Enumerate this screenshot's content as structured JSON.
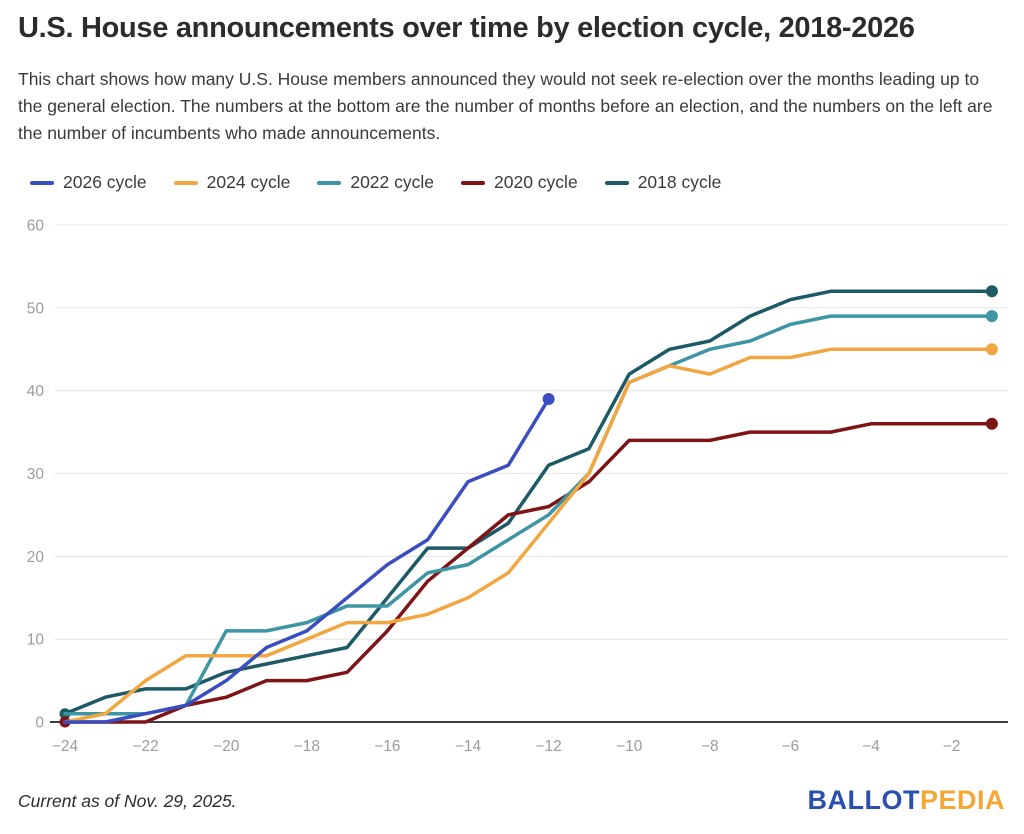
{
  "header": {
    "title": "U.S. House announcements over time by election cycle, 2018-2026",
    "subtitle": "This chart shows how many U.S. House members announced they would not seek re-election over the months leading up to the general election. The numbers at the bottom are the number of months before an election, and the numbers on the left are the number of incumbents who made announcements."
  },
  "legend": {
    "items": [
      {
        "label": "2026 cycle",
        "color": "#3b4ec0"
      },
      {
        "label": "2024 cycle",
        "color": "#f2a640"
      },
      {
        "label": "2022 cycle",
        "color": "#3e95a3"
      },
      {
        "label": "2020 cycle",
        "color": "#7e1416"
      },
      {
        "label": "2018 cycle",
        "color": "#1d5a66"
      }
    ]
  },
  "chart_data": {
    "type": "line",
    "x": [
      -24,
      -23,
      -22,
      -21,
      -20,
      -19,
      -18,
      -17,
      -16,
      -15,
      -14,
      -13,
      -12,
      -11,
      -10,
      -9,
      -8,
      -7,
      -6,
      -5,
      -4,
      -3,
      -2,
      -1
    ],
    "xticks": [
      -24,
      -22,
      -20,
      -18,
      -16,
      -14,
      -12,
      -10,
      -8,
      -6,
      -4,
      -2
    ],
    "yticks": [
      0,
      10,
      20,
      30,
      40,
      50,
      60
    ],
    "ylim": [
      0,
      60
    ],
    "grid": true,
    "legend_position": "top",
    "series": [
      {
        "name": "2026 cycle",
        "color": "#3b4ec0",
        "start_dot": false,
        "end_dot": true,
        "values": [
          0,
          0,
          1,
          2,
          5,
          9,
          11,
          15,
          19,
          22,
          29,
          31,
          39
        ]
      },
      {
        "name": "2024 cycle",
        "color": "#f2a640",
        "start_dot": false,
        "end_dot": true,
        "values": [
          0,
          1,
          5,
          8,
          8,
          8,
          10,
          12,
          12,
          13,
          15,
          18,
          24,
          30,
          41,
          43,
          42,
          44,
          44,
          45,
          45,
          45,
          45,
          45
        ]
      },
      {
        "name": "2022 cycle",
        "color": "#3e95a3",
        "start_dot": false,
        "end_dot": true,
        "values": [
          1,
          1,
          1,
          2,
          11,
          11,
          12,
          14,
          14,
          18,
          19,
          22,
          25,
          30,
          41,
          43,
          45,
          46,
          48,
          49,
          49,
          49,
          49,
          49
        ]
      },
      {
        "name": "2020 cycle",
        "color": "#7e1416",
        "start_dot": true,
        "end_dot": true,
        "values": [
          0,
          0,
          0,
          2,
          3,
          5,
          5,
          6,
          11,
          17,
          21,
          25,
          26,
          29,
          34,
          34,
          34,
          35,
          35,
          35,
          36,
          36,
          36,
          36
        ]
      },
      {
        "name": "2018 cycle",
        "color": "#1d5a66",
        "start_dot": true,
        "end_dot": true,
        "values": [
          1,
          3,
          4,
          4,
          6,
          7,
          8,
          9,
          15,
          21,
          21,
          24,
          31,
          33,
          42,
          45,
          46,
          49,
          51,
          52,
          52,
          52,
          52,
          52
        ]
      }
    ]
  },
  "axis_style": {
    "tick_color": "#9b9b9b",
    "gridline_color": "#e9e9e9",
    "axis_line_color": "#3f3f3f"
  },
  "footer": {
    "note": "Current as of Nov. 29, 2025.",
    "logo_ballot": "BALLOT",
    "logo_pedia": "PEDIA",
    "logo_ballot_color": "#2b4fad",
    "logo_pedia_color": "#f5a733"
  }
}
